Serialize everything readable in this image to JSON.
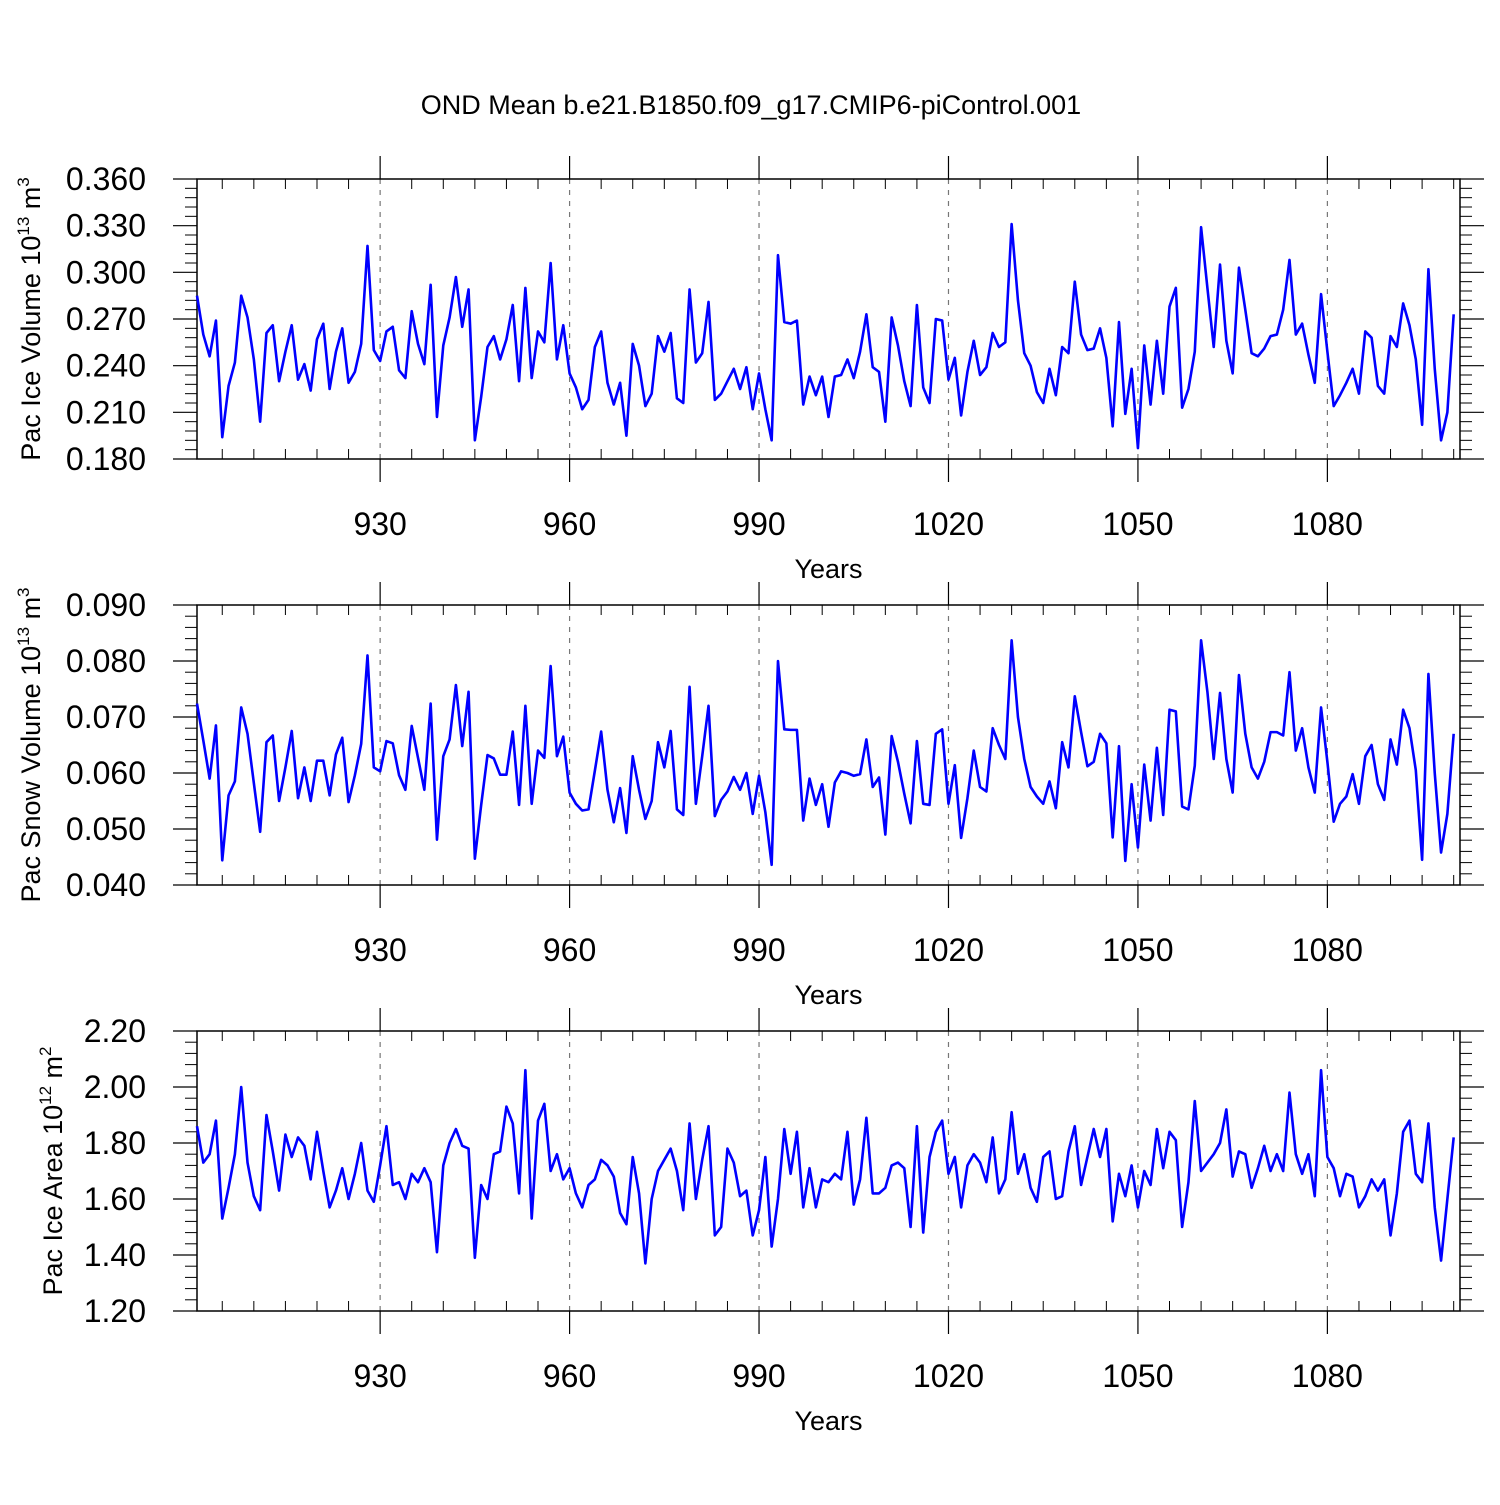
{
  "title": "OND Mean b.e21.B1850.f09_g17.CMIP6-piControl.001",
  "colors": {
    "line": "#0000ff",
    "axis": "#000000",
    "grid": "#777777"
  },
  "chart_data": [
    {
      "type": "line",
      "ylabel_main": "Pac Ice Volume 10",
      "ylabel_exp": "13",
      "ylabel_unit": " m",
      "ylabel_unit_exp": "3",
      "xlabel": "Years",
      "xlim": [
        901,
        1101
      ],
      "ylim": [
        0.18,
        0.36
      ],
      "yticks": [
        0.18,
        0.21,
        0.24,
        0.27,
        0.3,
        0.33,
        0.36
      ],
      "ytick_labels": [
        "0.180",
        "0.210",
        "0.240",
        "0.270",
        "0.300",
        "0.330",
        "0.360"
      ],
      "xticks": [
        930,
        960,
        990,
        1020,
        1050,
        1080
      ],
      "xtick_labels": [
        "930",
        "960",
        "990",
        "1020",
        "1050",
        "1080"
      ],
      "series": [
        {
          "name": "Pac Ice Volume",
          "x_start": 901,
          "values": [
            0.285,
            0.26,
            0.246,
            0.269,
            0.194,
            0.227,
            0.242,
            0.285,
            0.271,
            0.244,
            0.204,
            0.261,
            0.266,
            0.23,
            0.249,
            0.266,
            0.231,
            0.241,
            0.224,
            0.257,
            0.267,
            0.225,
            0.249,
            0.264,
            0.229,
            0.236,
            0.254,
            0.317,
            0.25,
            0.243,
            0.262,
            0.265,
            0.237,
            0.232,
            0.275,
            0.254,
            0.241,
            0.292,
            0.207,
            0.253,
            0.271,
            0.297,
            0.265,
            0.289,
            0.192,
            0.22,
            0.252,
            0.259,
            0.244,
            0.257,
            0.279,
            0.23,
            0.29,
            0.232,
            0.262,
            0.255,
            0.306,
            0.244,
            0.266,
            0.235,
            0.226,
            0.212,
            0.218,
            0.252,
            0.262,
            0.229,
            0.215,
            0.229,
            0.195,
            0.254,
            0.24,
            0.214,
            0.222,
            0.259,
            0.249,
            0.261,
            0.219,
            0.216,
            0.289,
            0.242,
            0.248,
            0.281,
            0.218,
            0.222,
            0.23,
            0.238,
            0.225,
            0.239,
            0.212,
            0.235,
            0.212,
            0.192,
            0.311,
            0.268,
            0.267,
            0.269,
            0.215,
            0.233,
            0.221,
            0.233,
            0.207,
            0.233,
            0.234,
            0.244,
            0.232,
            0.249,
            0.273,
            0.239,
            0.236,
            0.204,
            0.271,
            0.253,
            0.23,
            0.214,
            0.279,
            0.226,
            0.216,
            0.27,
            0.269,
            0.231,
            0.245,
            0.208,
            0.236,
            0.256,
            0.234,
            0.239,
            0.261,
            0.252,
            0.255,
            0.331,
            0.282,
            0.248,
            0.24,
            0.223,
            0.216,
            0.238,
            0.221,
            0.252,
            0.248,
            0.294,
            0.26,
            0.25,
            0.251,
            0.264,
            0.245,
            0.201,
            0.268,
            0.209,
            0.238,
            0.187,
            0.253,
            0.215,
            0.256,
            0.222,
            0.278,
            0.29,
            0.213,
            0.225,
            0.249,
            0.329,
            0.29,
            0.252,
            0.305,
            0.256,
            0.235,
            0.303,
            0.276,
            0.248,
            0.246,
            0.251,
            0.259,
            0.26,
            0.276,
            0.308,
            0.26,
            0.267,
            0.247,
            0.229,
            0.286,
            0.249,
            0.214,
            0.221,
            0.229,
            0.238,
            0.222,
            0.262,
            0.258,
            0.227,
            0.222,
            0.259,
            0.252,
            0.28,
            0.266,
            0.244,
            0.202,
            0.302,
            0.238,
            0.192,
            0.21,
            0.273
          ]
        }
      ]
    },
    {
      "type": "line",
      "ylabel_main": "Pac Snow Volume 10",
      "ylabel_exp": "13",
      "ylabel_unit": " m",
      "ylabel_unit_exp": "3",
      "xlabel": "Years",
      "xlim": [
        901,
        1101
      ],
      "ylim": [
        0.04,
        0.09
      ],
      "yticks": [
        0.04,
        0.05,
        0.06,
        0.07,
        0.08,
        0.09
      ],
      "ytick_labels": [
        "0.040",
        "0.050",
        "0.060",
        "0.070",
        "0.080",
        "0.090"
      ],
      "xticks": [
        930,
        960,
        990,
        1020,
        1050,
        1080
      ],
      "xtick_labels": [
        "930",
        "960",
        "990",
        "1020",
        "1050",
        "1080"
      ],
      "series": [
        {
          "name": "Pac Snow Volume",
          "x_start": 901,
          "values": [
            0.0724,
            0.0658,
            0.059,
            0.0685,
            0.0444,
            0.056,
            0.0585,
            0.0717,
            0.067,
            0.0582,
            0.0495,
            0.0655,
            0.0667,
            0.055,
            0.061,
            0.0675,
            0.0555,
            0.061,
            0.055,
            0.0622,
            0.0622,
            0.056,
            0.0633,
            0.0663,
            0.0548,
            0.0596,
            0.0652,
            0.081,
            0.061,
            0.0603,
            0.0657,
            0.0653,
            0.0596,
            0.057,
            0.0684,
            0.0627,
            0.057,
            0.0724,
            0.0481,
            0.063,
            0.066,
            0.0757,
            0.0648,
            0.0745,
            0.0447,
            0.0543,
            0.0632,
            0.0626,
            0.0597,
            0.0597,
            0.0674,
            0.0543,
            0.072,
            0.0545,
            0.064,
            0.0627,
            0.0791,
            0.063,
            0.0665,
            0.0565,
            0.0545,
            0.0533,
            0.0535,
            0.0604,
            0.0674,
            0.057,
            0.0512,
            0.0573,
            0.0493,
            0.063,
            0.057,
            0.0518,
            0.055,
            0.0655,
            0.061,
            0.0675,
            0.0535,
            0.0525,
            0.0754,
            0.0545,
            0.063,
            0.072,
            0.0523,
            0.0552,
            0.0567,
            0.0593,
            0.057,
            0.06,
            0.0527,
            0.0595,
            0.053,
            0.0436,
            0.08,
            0.0678,
            0.0677,
            0.0677,
            0.0515,
            0.059,
            0.0543,
            0.058,
            0.0504,
            0.0583,
            0.0603,
            0.06,
            0.0595,
            0.0598,
            0.066,
            0.0575,
            0.0592,
            0.049,
            0.0666,
            0.062,
            0.0563,
            0.051,
            0.0657,
            0.0545,
            0.0543,
            0.067,
            0.0678,
            0.0545,
            0.0614,
            0.0484,
            0.0555,
            0.064,
            0.0575,
            0.0567,
            0.068,
            0.065,
            0.0625,
            0.0837,
            0.07,
            0.0625,
            0.0575,
            0.0558,
            0.0545,
            0.0585,
            0.0537,
            0.0655,
            0.061,
            0.0737,
            0.0673,
            0.0612,
            0.062,
            0.067,
            0.0653,
            0.0485,
            0.0648,
            0.0443,
            0.058,
            0.0467,
            0.0615,
            0.0515,
            0.0645,
            0.0525,
            0.0713,
            0.071,
            0.054,
            0.0535,
            0.0613,
            0.0837,
            0.0745,
            0.0625,
            0.0743,
            0.0625,
            0.0565,
            0.0775,
            0.067,
            0.061,
            0.059,
            0.062,
            0.0673,
            0.0673,
            0.0667,
            0.078,
            0.064,
            0.068,
            0.061,
            0.0565,
            0.0717,
            0.062,
            0.0513,
            0.0545,
            0.0558,
            0.0598,
            0.0545,
            0.063,
            0.065,
            0.058,
            0.0552,
            0.066,
            0.0615,
            0.0713,
            0.068,
            0.0605,
            0.0445,
            0.0777,
            0.06,
            0.0458,
            0.0527,
            0.067
          ]
        }
      ]
    },
    {
      "type": "line",
      "ylabel_main": "Pac Ice Area 10",
      "ylabel_exp": "12",
      "ylabel_unit": " m",
      "ylabel_unit_exp": "2",
      "xlabel": "Years",
      "xlim": [
        901,
        1101
      ],
      "ylim": [
        1.2,
        2.2
      ],
      "yticks": [
        1.2,
        1.4,
        1.6,
        1.8,
        2.0,
        2.2
      ],
      "ytick_labels": [
        "1.20",
        "1.40",
        "1.60",
        "1.80",
        "2.00",
        "2.20"
      ],
      "xticks": [
        930,
        960,
        990,
        1020,
        1050,
        1080
      ],
      "xtick_labels": [
        "930",
        "960",
        "990",
        "1020",
        "1050",
        "1080"
      ],
      "series": [
        {
          "name": "Pac Ice Area",
          "x_start": 901,
          "values": [
            1.86,
            1.73,
            1.76,
            1.88,
            1.53,
            1.64,
            1.76,
            2.0,
            1.73,
            1.61,
            1.56,
            1.9,
            1.77,
            1.63,
            1.83,
            1.75,
            1.82,
            1.79,
            1.67,
            1.84,
            1.7,
            1.57,
            1.63,
            1.71,
            1.6,
            1.69,
            1.8,
            1.63,
            1.59,
            1.72,
            1.86,
            1.65,
            1.66,
            1.6,
            1.69,
            1.66,
            1.71,
            1.66,
            1.41,
            1.72,
            1.8,
            1.85,
            1.79,
            1.78,
            1.39,
            1.65,
            1.6,
            1.76,
            1.77,
            1.93,
            1.87,
            1.62,
            2.06,
            1.53,
            1.88,
            1.94,
            1.7,
            1.76,
            1.67,
            1.71,
            1.62,
            1.57,
            1.65,
            1.67,
            1.74,
            1.72,
            1.68,
            1.55,
            1.51,
            1.75,
            1.62,
            1.37,
            1.6,
            1.7,
            1.74,
            1.78,
            1.7,
            1.56,
            1.87,
            1.6,
            1.74,
            1.86,
            1.47,
            1.5,
            1.78,
            1.73,
            1.61,
            1.63,
            1.47,
            1.56,
            1.75,
            1.43,
            1.6,
            1.85,
            1.69,
            1.84,
            1.57,
            1.71,
            1.57,
            1.67,
            1.66,
            1.69,
            1.67,
            1.84,
            1.58,
            1.67,
            1.89,
            1.62,
            1.62,
            1.64,
            1.72,
            1.73,
            1.71,
            1.5,
            1.86,
            1.48,
            1.75,
            1.84,
            1.88,
            1.69,
            1.75,
            1.57,
            1.72,
            1.76,
            1.73,
            1.66,
            1.82,
            1.62,
            1.67,
            1.91,
            1.69,
            1.76,
            1.64,
            1.59,
            1.75,
            1.77,
            1.6,
            1.61,
            1.77,
            1.86,
            1.65,
            1.75,
            1.85,
            1.75,
            1.85,
            1.52,
            1.69,
            1.61,
            1.72,
            1.57,
            1.7,
            1.65,
            1.85,
            1.71,
            1.84,
            1.81,
            1.5,
            1.66,
            1.95,
            1.7,
            1.73,
            1.76,
            1.8,
            1.92,
            1.68,
            1.77,
            1.76,
            1.64,
            1.71,
            1.79,
            1.7,
            1.76,
            1.7,
            1.98,
            1.76,
            1.69,
            1.76,
            1.61,
            2.06,
            1.75,
            1.71,
            1.61,
            1.69,
            1.68,
            1.57,
            1.61,
            1.67,
            1.63,
            1.67,
            1.47,
            1.62,
            1.84,
            1.88,
            1.69,
            1.66,
            1.87,
            1.57,
            1.38,
            1.6,
            1.82
          ]
        }
      ]
    }
  ]
}
